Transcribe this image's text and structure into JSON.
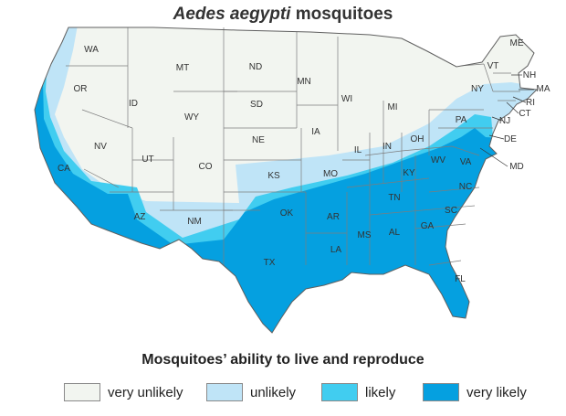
{
  "title": {
    "species": "Aedes aegypti",
    "suffix": "mosquitoes"
  },
  "legend": {
    "title": "Mosquitoes’ ability to live and reproduce",
    "items": [
      {
        "label": "very unlikely",
        "color": "#f2f5f0"
      },
      {
        "label": "unlikely",
        "color": "#bfe4f7"
      },
      {
        "label": "likely",
        "color": "#41cdf0"
      },
      {
        "label": "very likely",
        "color": "#05a0e0"
      }
    ]
  },
  "state_labels": [
    "WA",
    "OR",
    "CA",
    "NV",
    "ID",
    "MT",
    "WY",
    "UT",
    "AZ",
    "CO",
    "NM",
    "ND",
    "SD",
    "NE",
    "KS",
    "OK",
    "TX",
    "MN",
    "IA",
    "MO",
    "AR",
    "LA",
    "WI",
    "IL",
    "MS",
    "MI",
    "IN",
    "KY",
    "TN",
    "AL",
    "OH",
    "WV",
    "GA",
    "FL",
    "SC",
    "NC",
    "VA",
    "PA",
    "NY",
    "ME",
    "VT",
    "NH",
    "MA",
    "RI",
    "CT",
    "NJ",
    "DE",
    "MD"
  ]
}
